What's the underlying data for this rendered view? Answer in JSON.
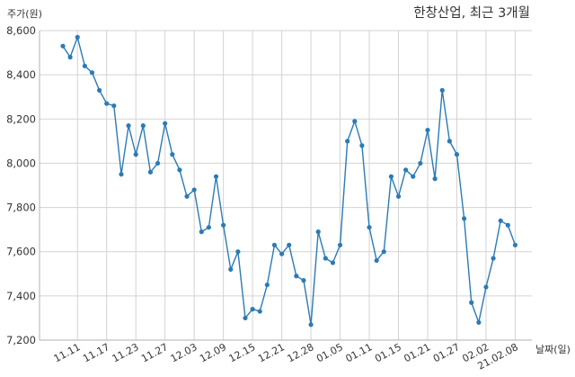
{
  "chart_data": {
    "type": "line",
    "title": "한창산업, 최근 3개월",
    "ylabel": "주가(원)",
    "xlabel": "날짜(일)",
    "ylim": [
      7200,
      8600
    ],
    "yticks": [
      7200,
      7400,
      7600,
      7800,
      8000,
      8200,
      8400,
      8600
    ],
    "ytick_labels": [
      "7,200",
      "7,400",
      "7,600",
      "7,800",
      "8,000",
      "8,200",
      "8,400",
      "8,600"
    ],
    "xtick_labels": [
      "11.11",
      "11.17",
      "11.23",
      "11.27",
      "12.03",
      "12.09",
      "12.15",
      "12.21",
      "12.28",
      "01.05",
      "01.11",
      "01.15",
      "01.21",
      "01.27",
      "02.02",
      "21.02.08"
    ],
    "xtick_index": [
      2,
      6,
      10,
      14,
      18,
      22,
      26,
      30,
      34,
      38,
      42,
      46,
      50,
      54,
      58,
      62
    ],
    "grid": true,
    "color": "#2b7bb5",
    "series": [
      {
        "values": [
          8530,
          8480,
          8570,
          8440,
          8410,
          8330,
          8270,
          8260,
          7950,
          8170,
          8040,
          8170,
          7960,
          8000,
          8180,
          8040,
          7970,
          7850,
          7880,
          7690,
          7710,
          7940,
          7720,
          7520,
          7600,
          7300,
          7340,
          7330,
          7450,
          7630,
          7590,
          7630,
          7490,
          7470,
          7270,
          7690,
          7570,
          7550,
          7630,
          8100,
          8190,
          8080,
          7710,
          7560,
          7600,
          7940,
          7850,
          7970,
          7940,
          8000,
          8150,
          7930,
          8330,
          8100,
          8040,
          7750,
          7370,
          7280,
          7440,
          7570,
          7740,
          7720,
          7630
        ]
      }
    ]
  }
}
